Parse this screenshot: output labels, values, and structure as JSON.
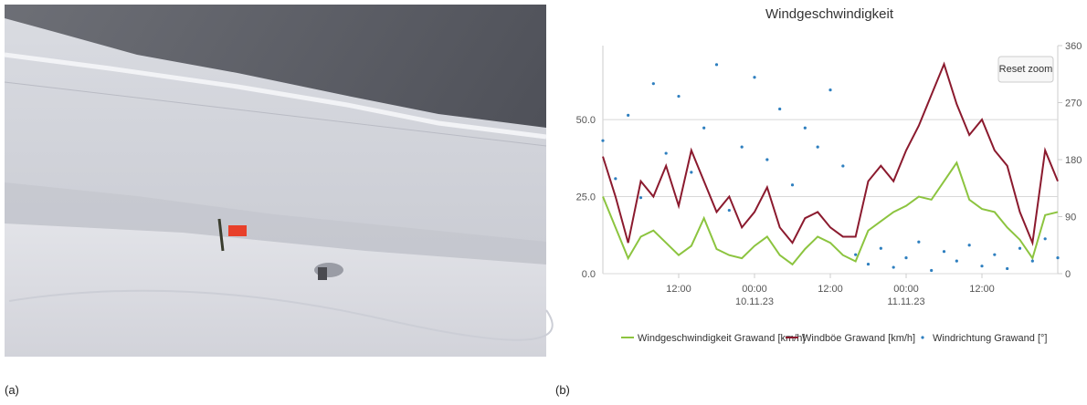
{
  "captions": [
    "(a)",
    "(b)"
  ],
  "chart_data": {
    "type": "line",
    "title": "Windgeschwindigkeit",
    "reset_button": "Reset zoom",
    "x": [
      -24,
      -22,
      -20,
      -18,
      -16,
      -14,
      -12,
      -10,
      -8,
      -6,
      -4,
      -2,
      0,
      2,
      4,
      6,
      8,
      10,
      12,
      14,
      16,
      18,
      20,
      22,
      24,
      26,
      28,
      30,
      32,
      34,
      36,
      38,
      40,
      42,
      44,
      46,
      48
    ],
    "xlim": [
      -24,
      48
    ],
    "xticks": [
      {
        "value": -12,
        "label": "12:00"
      },
      {
        "value": 0,
        "label": "00:00\n10.11.23"
      },
      {
        "value": 12,
        "label": "12:00"
      },
      {
        "value": 24,
        "label": "00:00\n11.11.23"
      },
      {
        "value": 36,
        "label": "12:00"
      }
    ],
    "ylim": [
      0,
      74
    ],
    "yticks": [
      {
        "value": 0,
        "label": "0.0"
      },
      {
        "value": 25,
        "label": "25.0"
      },
      {
        "value": 50,
        "label": "50.0"
      }
    ],
    "y2lim": [
      0,
      360
    ],
    "y2ticks": [
      0,
      90,
      180,
      270,
      360
    ],
    "grid": true,
    "legend": "bottom",
    "series": [
      {
        "name": "Windgeschwindigkeit Grawand [km/h]",
        "color": "#8cc43f",
        "type": "line",
        "values": [
          25,
          15,
          5,
          12,
          14,
          10,
          6,
          9,
          18,
          8,
          6,
          5,
          9,
          12,
          6,
          3,
          8,
          12,
          10,
          6,
          4,
          14,
          17,
          20,
          22,
          25,
          24,
          30,
          36,
          24,
          21,
          20,
          15,
          11,
          5,
          19,
          20
        ]
      },
      {
        "name": "Windböe Grawand [km/h]",
        "color": "#8b1a2e",
        "type": "line",
        "values": [
          38,
          25,
          10,
          30,
          25,
          35,
          22,
          40,
          30,
          20,
          25,
          15,
          20,
          28,
          15,
          10,
          18,
          20,
          15,
          12,
          12,
          30,
          35,
          30,
          40,
          48,
          58,
          68,
          55,
          45,
          50,
          40,
          35,
          20,
          10,
          40,
          30
        ]
      },
      {
        "name": "Windrichtung Grawand [°]",
        "color": "#2e7fbf",
        "type": "scatter",
        "axis": "y2",
        "values": [
          210,
          150,
          250,
          120,
          300,
          190,
          280,
          160,
          230,
          330,
          100,
          200,
          310,
          180,
          260,
          140,
          230,
          200,
          290,
          170,
          30,
          15,
          40,
          10,
          25,
          50,
          5,
          35,
          20,
          45,
          12,
          30,
          8,
          40,
          20,
          55,
          25
        ]
      }
    ]
  }
}
